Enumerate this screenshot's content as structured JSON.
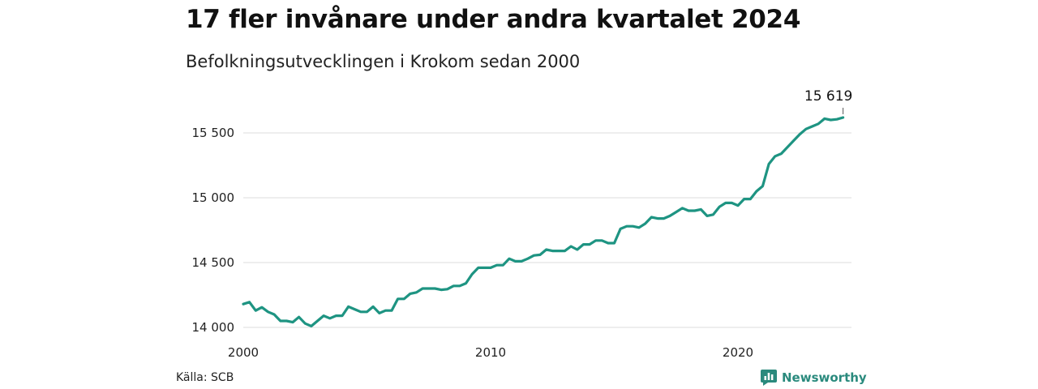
{
  "header": {
    "title": "17 fler invånare under andra kvartalet 2024",
    "subtitle": "Befolkningsutvecklingen i Krokom sedan 2000"
  },
  "footer": {
    "source": "Källa: SCB",
    "brand": "Newsworthy",
    "brand_icon": "newsworthy-logo-icon"
  },
  "colors": {
    "line": "#1e9482",
    "grid": "#dddddd",
    "brand": "#2a8a7d"
  },
  "chart_data": {
    "type": "line",
    "title": "17 fler invånare under andra kvartalet 2024",
    "subtitle": "Befolkningsutvecklingen i Krokom sedan 2000",
    "xlabel": "",
    "ylabel": "",
    "xlim": [
      2000,
      2024.5
    ],
    "ylim": [
      14000,
      15700
    ],
    "x_ticks": [
      2000,
      2010,
      2020
    ],
    "x_tick_labels": [
      "2000",
      "2010",
      "2020"
    ],
    "y_ticks": [
      14000,
      14500,
      15000,
      15500
    ],
    "y_tick_labels": [
      "14 000",
      "14 500",
      "15 000",
      "15 500"
    ],
    "grid": "horizontal",
    "legend": "none",
    "annotation": {
      "x": 2024.25,
      "y": 15619,
      "label": "15 619"
    },
    "x": [
      2000.0,
      2000.25,
      2000.5,
      2000.75,
      2001.0,
      2001.25,
      2001.5,
      2001.75,
      2002.0,
      2002.25,
      2002.5,
      2002.75,
      2003.0,
      2003.25,
      2003.5,
      2003.75,
      2004.0,
      2004.25,
      2004.5,
      2004.75,
      2005.0,
      2005.25,
      2005.5,
      2005.75,
      2006.0,
      2006.25,
      2006.5,
      2006.75,
      2007.0,
      2007.25,
      2007.5,
      2007.75,
      2008.0,
      2008.25,
      2008.5,
      2008.75,
      2009.0,
      2009.25,
      2009.5,
      2009.75,
      2010.0,
      2010.25,
      2010.5,
      2010.75,
      2011.0,
      2011.25,
      2011.5,
      2011.75,
      2012.0,
      2012.25,
      2012.5,
      2012.75,
      2013.0,
      2013.25,
      2013.5,
      2013.75,
      2014.0,
      2014.25,
      2014.5,
      2014.75,
      2015.0,
      2015.25,
      2015.5,
      2015.75,
      2016.0,
      2016.25,
      2016.5,
      2016.75,
      2017.0,
      2017.25,
      2017.5,
      2017.75,
      2018.0,
      2018.25,
      2018.5,
      2018.75,
      2019.0,
      2019.25,
      2019.5,
      2019.75,
      2020.0,
      2020.25,
      2020.5,
      2020.75,
      2021.0,
      2021.25,
      2021.5,
      2021.75,
      2022.0,
      2022.25,
      2022.5,
      2022.75,
      2023.0,
      2023.25,
      2023.5,
      2023.75,
      2024.0,
      2024.25
    ],
    "series": [
      {
        "values": [
          14180,
          14195,
          14130,
          14155,
          14120,
          14100,
          14050,
          14050,
          14040,
          14080,
          14030,
          14010,
          14050,
          14090,
          14070,
          14090,
          14090,
          14160,
          14140,
          14120,
          14120,
          14160,
          14110,
          14130,
          14130,
          14220,
          14220,
          14260,
          14270,
          14300,
          14300,
          14300,
          14290,
          14295,
          14320,
          14320,
          14340,
          14410,
          14460,
          14460,
          14460,
          14480,
          14480,
          14530,
          14510,
          14510,
          14530,
          14555,
          14560,
          14600,
          14590,
          14590,
          14590,
          14625,
          14600,
          14640,
          14640,
          14670,
          14670,
          14650,
          14650,
          14760,
          14780,
          14780,
          14770,
          14800,
          14850,
          14840,
          14840,
          14860,
          14890,
          14920,
          14900,
          14900,
          14910,
          14860,
          14870,
          14930,
          14960,
          14960,
          14940,
          14990,
          14990,
          15050,
          15090,
          15260,
          15320,
          15340,
          15390,
          15440,
          15490,
          15530,
          15550,
          15570,
          15610,
          15600,
          15605,
          15619
        ]
      }
    ]
  }
}
